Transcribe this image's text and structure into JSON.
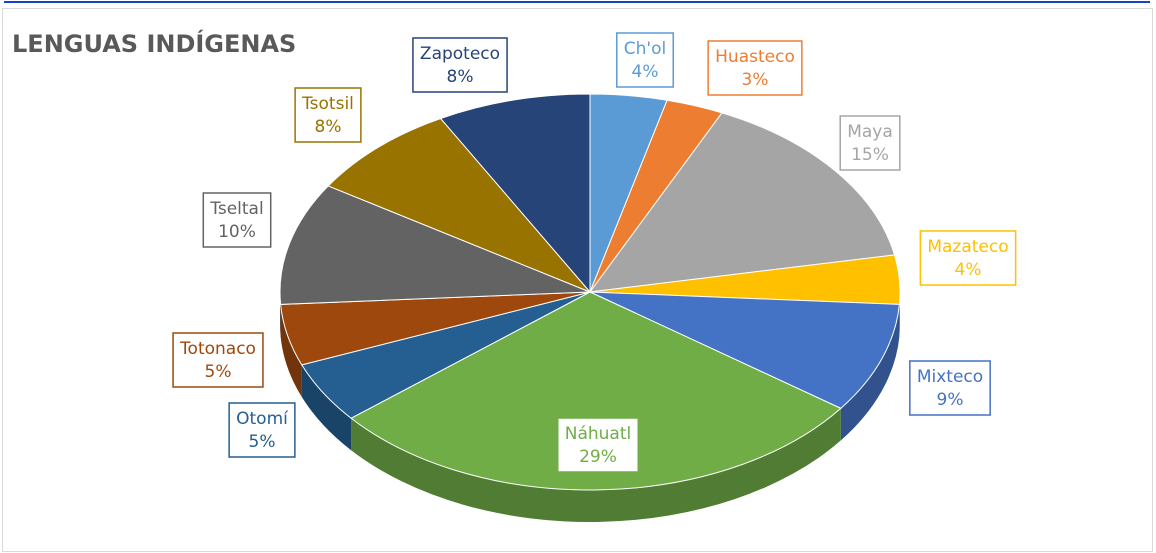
{
  "chart_data": {
    "type": "pie",
    "title": "LENGUAS INDÍGENAS",
    "categories": [
      "Ch'ol",
      "Huasteco",
      "Maya",
      "Mazateco",
      "Mixteco",
      "Náhuatl",
      "Otomí",
      "Totonaco",
      "Tseltal",
      "Tsotsil",
      "Zapoteco"
    ],
    "values": [
      4,
      3,
      15,
      4,
      9,
      29,
      5,
      5,
      10,
      8,
      8
    ],
    "value_labels": [
      "4%",
      "3%",
      "15%",
      "4%",
      "9%",
      "29%",
      "5%",
      "5%",
      "10%",
      "8%",
      "8%"
    ],
    "colors": [
      "#5b9bd5",
      "#ed7d31",
      "#a5a5a5",
      "#ffc000",
      "#4472c4",
      "#70ad47",
      "#255e91",
      "#9e480e",
      "#636363",
      "#997300",
      "#264478"
    ]
  }
}
